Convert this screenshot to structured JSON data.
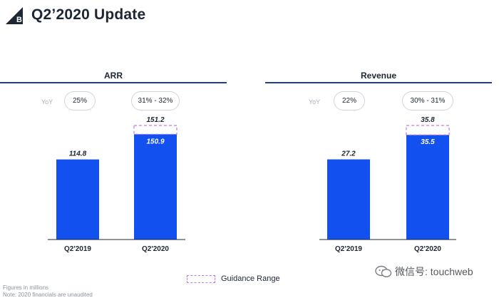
{
  "header": {
    "title": "Q2’2020 Update"
  },
  "panels": [
    {
      "title": "ARR",
      "yoy_label": "YoY",
      "yoy": [
        "25%",
        "31% - 32%"
      ]
    },
    {
      "title": "Revenue",
      "yoy_label": "YoY",
      "yoy": [
        "22%",
        "30% - 31%"
      ]
    }
  ],
  "legend": {
    "label": "Guidance Range"
  },
  "footnotes": [
    "Figures in millions",
    "Note: 2020 financials are unaudited"
  ],
  "watermark": {
    "text": "微信号: touchweb"
  },
  "colors": {
    "bar": "#1251f0",
    "guidance": "#c27ae6",
    "rule": "#1f3f8f"
  },
  "icons": {
    "logo": "bigcommerce-logo",
    "watermark": "wechat-icon"
  },
  "chart_data": [
    {
      "type": "bar",
      "title": "ARR",
      "categories": [
        "Q2'2019",
        "Q2'2020"
      ],
      "values": [
        114.8,
        150.9
      ],
      "value_labels": [
        "114.8",
        "150.9"
      ],
      "guidance_range": {
        "category": "Q2'2020",
        "low": 150.9,
        "high": 151.2,
        "high_label": "151.2"
      },
      "ylim": [
        0,
        151.2
      ]
    },
    {
      "type": "bar",
      "title": "Revenue",
      "categories": [
        "Q2'2019",
        "Q2'2020"
      ],
      "values": [
        27.2,
        35.5
      ],
      "value_labels": [
        "27.2",
        "35.5"
      ],
      "guidance_range": {
        "category": "Q2'2020",
        "low": 35.5,
        "high": 35.8,
        "high_label": "35.8"
      },
      "ylim": [
        0,
        35.8
      ]
    }
  ]
}
